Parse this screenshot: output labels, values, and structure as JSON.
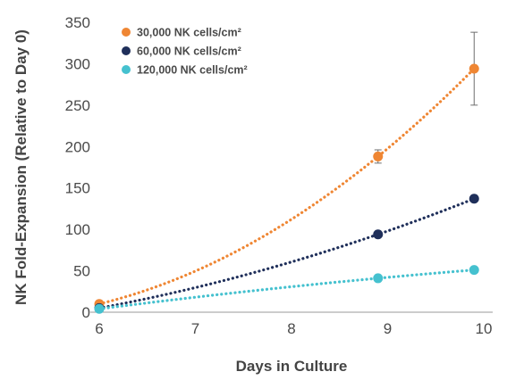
{
  "chart_data": {
    "type": "scatter",
    "title": "",
    "xlabel": "Days in Culture",
    "ylabel": "NK Fold-Expansion (Relative to Day 0)",
    "xlim": [
      6,
      10
    ],
    "ylim": [
      0,
      350
    ],
    "xticks": [
      "6",
      "7",
      "8",
      "9",
      "10"
    ],
    "yticks": [
      "0",
      "50",
      "100",
      "150",
      "200",
      "250",
      "300",
      "350"
    ],
    "xtick_values": [
      6,
      7,
      8,
      9,
      10
    ],
    "ytick_values": [
      0,
      50,
      100,
      150,
      200,
      250,
      300,
      350
    ],
    "grid": false,
    "legend_position": "top-left",
    "trendline": "polynomial, dotted",
    "series": [
      {
        "name": "30,000 NK cells/cm²",
        "color": "#ef8633",
        "x": [
          6,
          8.9,
          9.9
        ],
        "y": [
          10,
          188,
          294
        ],
        "error": [
          null,
          8,
          44
        ]
      },
      {
        "name": "60,000 NK cells/cm²",
        "color": "#1f2f5a",
        "x": [
          6,
          8.9,
          9.9
        ],
        "y": [
          5,
          94,
          137
        ],
        "error": [
          null,
          null,
          null
        ]
      },
      {
        "name": "120,000 NK cells/cm²",
        "color": "#45c1cf",
        "x": [
          6,
          8.9,
          9.9
        ],
        "y": [
          4,
          41,
          51
        ],
        "error": [
          null,
          null,
          null
        ]
      }
    ]
  }
}
